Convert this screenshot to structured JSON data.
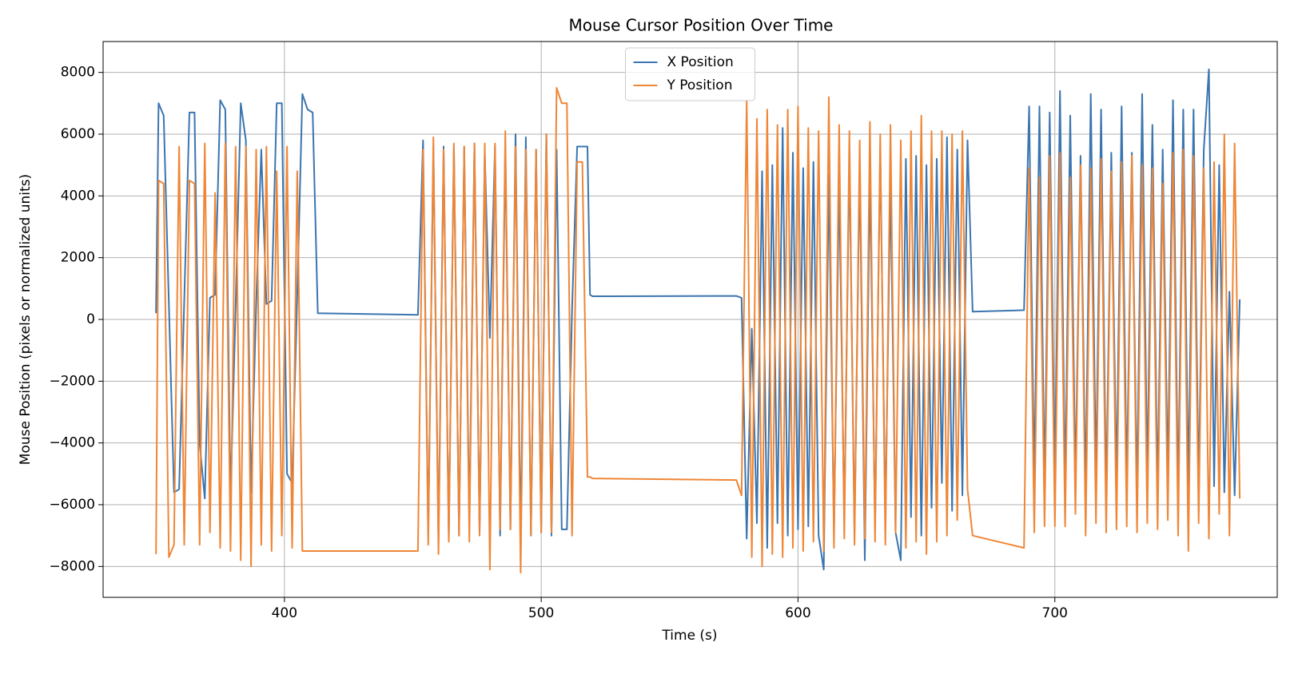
{
  "chart_data": {
    "type": "line",
    "title": "Mouse Cursor Position Over Time",
    "x_label": "Time (s)",
    "y_label": "Mouse Position (pixels or normalized units)",
    "xlim": [
      329.4,
      786.6
    ],
    "ylim": [
      -9000,
      9000
    ],
    "xticks": [
      400,
      500,
      600,
      700
    ],
    "yticks": [
      {
        "value": -8000,
        "label": "−8000"
      },
      {
        "value": -6000,
        "label": "−6000"
      },
      {
        "value": -4000,
        "label": "−4000"
      },
      {
        "value": -2000,
        "label": "−2000"
      },
      0,
      2000,
      4000,
      6000,
      8000
    ],
    "grid": true,
    "legend": "upper center",
    "x": [
      350,
      351,
      353,
      355,
      357,
      359,
      361,
      363,
      365,
      367,
      369,
      371,
      373,
      375,
      377,
      379,
      381,
      383,
      385,
      387,
      389,
      391,
      393,
      395,
      397,
      399,
      401,
      403,
      405,
      407,
      409,
      411,
      413,
      452,
      454,
      456,
      458,
      460,
      462,
      464,
      466,
      468,
      470,
      472,
      474,
      476,
      478,
      480,
      482,
      484,
      486,
      488,
      490,
      492,
      494,
      496,
      498,
      500,
      502,
      504,
      506,
      508,
      510,
      512,
      514,
      516,
      518,
      519,
      520,
      576,
      578,
      580,
      582,
      584,
      586,
      588,
      590,
      592,
      594,
      596,
      598,
      600,
      602,
      604,
      606,
      608,
      610,
      612,
      614,
      616,
      618,
      620,
      622,
      624,
      626,
      628,
      630,
      632,
      634,
      636,
      638,
      640,
      642,
      644,
      646,
      648,
      650,
      652,
      654,
      656,
      658,
      660,
      662,
      664,
      666,
      668,
      688,
      690,
      692,
      694,
      696,
      698,
      700,
      702,
      704,
      706,
      708,
      710,
      712,
      714,
      716,
      718,
      720,
      722,
      724,
      726,
      728,
      730,
      732,
      734,
      736,
      738,
      740,
      742,
      744,
      746,
      748,
      750,
      752,
      754,
      756,
      758,
      760,
      762,
      764,
      766,
      768,
      770,
      772
    ],
    "series": [
      {
        "name": "X Position",
        "color": "#3b75af",
        "values": [
          200,
          7000,
          6600,
          500,
          -5600,
          -5500,
          600,
          6700,
          6700,
          -4000,
          -5800,
          700,
          800,
          7100,
          6800,
          -5800,
          400,
          7000,
          5800,
          -5600,
          500,
          5500,
          500,
          600,
          7000,
          7000,
          -5000,
          -5300,
          800,
          7300,
          6800,
          6700,
          200,
          150,
          5800,
          -7000,
          5600,
          -7200,
          5600,
          -7100,
          5600,
          -7000,
          5600,
          -6600,
          5700,
          -6900,
          5400,
          -600,
          5600,
          -7000,
          5600,
          -6800,
          6000,
          -7200,
          5900,
          -7000,
          5500,
          -6900,
          6000,
          -7000,
          5500,
          -6800,
          -6800,
          300,
          5600,
          5600,
          5600,
          800,
          750,
          760,
          700,
          -7100,
          -300,
          -6600,
          4800,
          -7400,
          5000,
          -6600,
          6200,
          -7000,
          5400,
          -6800,
          4900,
          -6700,
          5100,
          -7000,
          -8100,
          4700,
          -6900,
          4500,
          -6500,
          5300,
          -6900,
          5000,
          -7800,
          4800,
          -6700,
          5500,
          -6500,
          4500,
          -6900,
          -7800,
          5200,
          -6400,
          5300,
          -7000,
          5000,
          -6100,
          5200,
          -5300,
          5900,
          -6200,
          5500,
          -5700,
          5800,
          250,
          300,
          6900,
          -5300,
          6900,
          -5500,
          6700,
          -5200,
          7400,
          -5500,
          6600,
          -5300,
          5300,
          -5600,
          7300,
          -5200,
          6800,
          -5800,
          5400,
          -5300,
          6900,
          -5400,
          5400,
          -5700,
          7300,
          -5100,
          6300,
          -5600,
          5500,
          -5200,
          7100,
          -5800,
          6800,
          -5400,
          6800,
          -5500,
          5500,
          8100,
          -5400,
          5000,
          -5600,
          900,
          -5700,
          650
        ]
      },
      {
        "name": "Y Position",
        "color": "#ef8636",
        "values": [
          -7600,
          4500,
          4400,
          -7700,
          -7300,
          5600,
          -7300,
          4500,
          4400,
          -7300,
          5700,
          -6900,
          4100,
          -7400,
          5700,
          -7500,
          5600,
          -7800,
          5600,
          -8000,
          5500,
          -7300,
          5600,
          -7500,
          4800,
          -7000,
          5600,
          -7400,
          4800,
          -7500,
          -7500,
          -7500,
          -7500,
          -7500,
          5500,
          -7300,
          5900,
          -7600,
          5500,
          -7200,
          5700,
          -7000,
          5600,
          -7200,
          5700,
          -7000,
          5700,
          -8100,
          5700,
          -6800,
          6100,
          -6800,
          5600,
          -8200,
          5500,
          -7000,
          5500,
          -6900,
          6000,
          -6900,
          7500,
          7000,
          7000,
          -7000,
          5100,
          5100,
          -5100,
          -5100,
          -5150,
          -5200,
          -5700,
          7100,
          -7700,
          6500,
          -8000,
          6800,
          -7600,
          6300,
          -7700,
          6800,
          -7400,
          6900,
          -7500,
          6200,
          -7200,
          6100,
          -7500,
          7200,
          -7400,
          6300,
          -7100,
          6100,
          -7300,
          5800,
          -7100,
          6400,
          -7200,
          6000,
          -7300,
          6300,
          -6900,
          5800,
          -7400,
          6100,
          -7200,
          6600,
          -7600,
          6100,
          -7200,
          6100,
          -7000,
          6000,
          -6500,
          6100,
          -5500,
          -7000,
          -7400,
          4900,
          -6900,
          4600,
          -6700,
          5300,
          -6700,
          5400,
          -6700,
          4600,
          -6300,
          5000,
          -7000,
          4900,
          -6600,
          5200,
          -6900,
          4800,
          -6800,
          5100,
          -6700,
          5300,
          -6900,
          5000,
          -6600,
          4900,
          -6800,
          4400,
          -6500,
          5400,
          -7000,
          5500,
          -7500,
          5300,
          -6600,
          4900,
          -7100,
          5100,
          -6300,
          6000,
          -7000,
          5700,
          -5800
        ]
      }
    ]
  }
}
